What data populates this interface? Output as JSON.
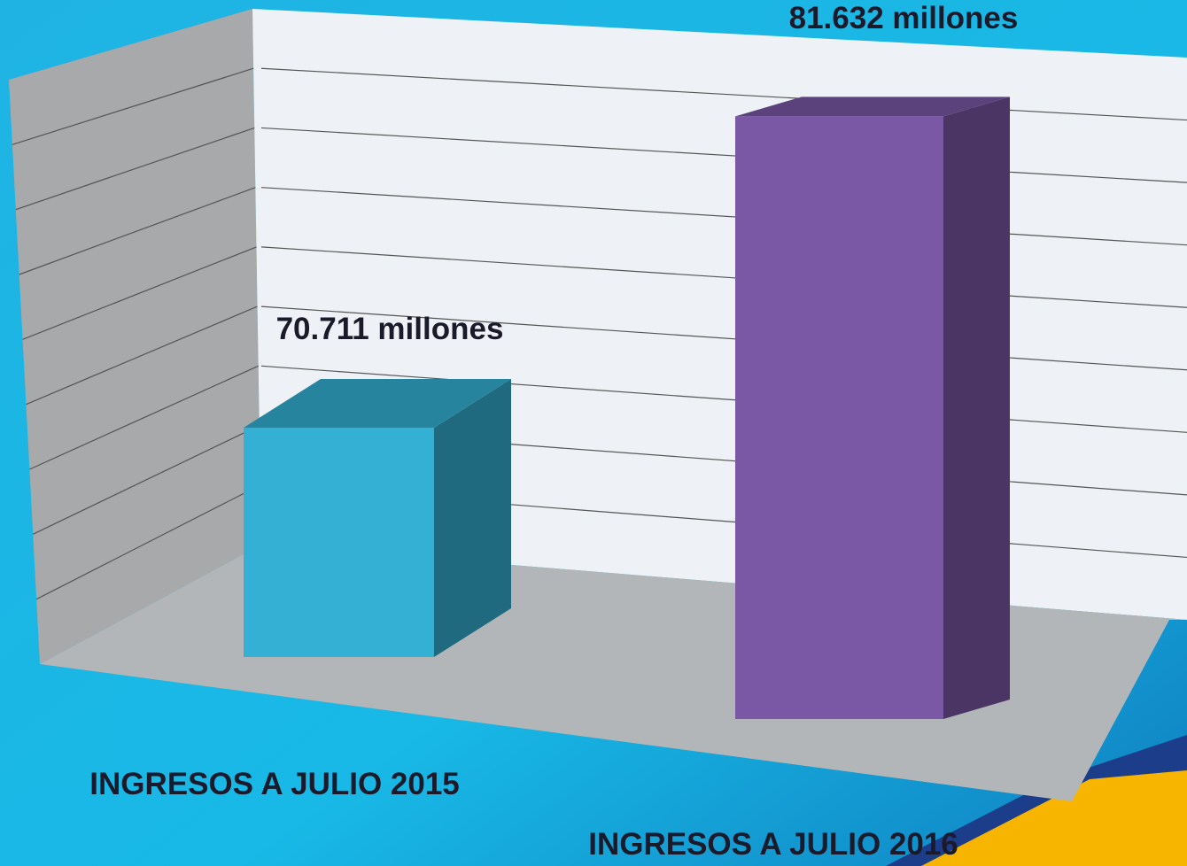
{
  "chart_data": {
    "type": "bar3d",
    "categories": [
      "INGRESOS A JULIO 2015",
      "INGRESOS A JULIO 2016"
    ],
    "values": [
      70.711,
      81.632
    ],
    "value_labels": [
      "70.711 millones",
      "81.632 millones"
    ],
    "colors": [
      "#34b0d4",
      "#7b58a6"
    ],
    "ylim": [
      64,
      84
    ]
  }
}
